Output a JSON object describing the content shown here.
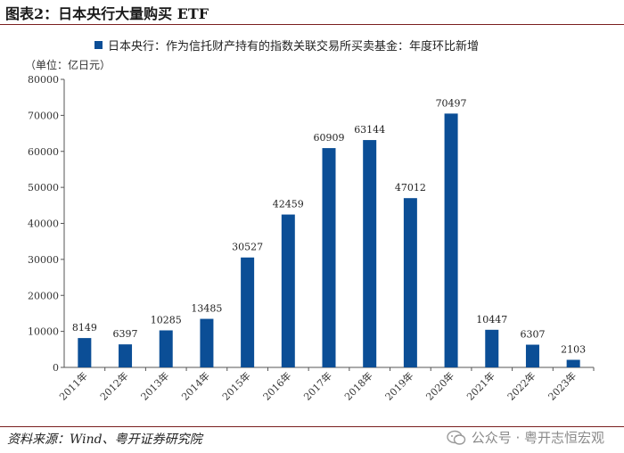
{
  "figure_title": "图表2：日本央行大量购买 ETF",
  "unit_label": "（单位：亿日元）",
  "source": "资料来源：Wind、粤开证券研究院",
  "watermark": "公众号 · 粤开志恒宏观",
  "colors": {
    "bar": "#0b4e96",
    "rule": "#7a1f1f",
    "axis": "#555555"
  },
  "chart_data": {
    "type": "bar",
    "title": "",
    "legend": "日本央行：作为信托财产持有的指数关联交易所买卖基金：年度环比新增",
    "legend_position": "top-left",
    "categories": [
      "2011年",
      "2012年",
      "2013年",
      "2014年",
      "2015年",
      "2016年",
      "2017年",
      "2018年",
      "2019年",
      "2020年",
      "2021年",
      "2022年",
      "2023年"
    ],
    "values": [
      8149,
      6397,
      10285,
      13485,
      30527,
      42459,
      60909,
      63144,
      47012,
      70497,
      10447,
      6307,
      2103
    ],
    "ylim": [
      0,
      80000
    ],
    "yticks": [
      0,
      10000,
      20000,
      30000,
      40000,
      50000,
      60000,
      70000,
      80000
    ],
    "grid": false,
    "xlabel": "",
    "ylabel": ""
  }
}
